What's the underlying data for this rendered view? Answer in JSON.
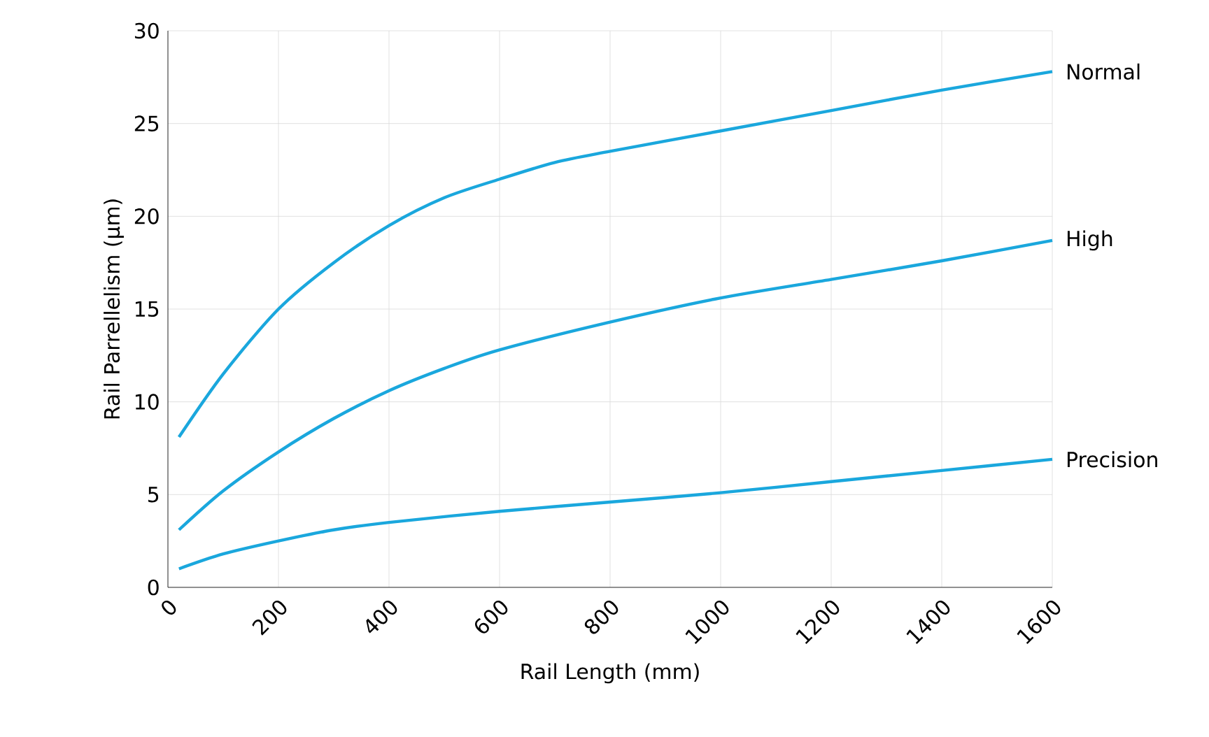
{
  "chart_data": {
    "type": "line",
    "xlabel": "Rail Length (mm)",
    "ylabel": "Rail Parrellelism (μm)",
    "xlim": [
      0,
      1600
    ],
    "ylim": [
      0,
      30
    ],
    "xticks": [
      0,
      200,
      400,
      600,
      800,
      1000,
      1200,
      1400,
      1600
    ],
    "yticks": [
      0,
      5,
      10,
      15,
      20,
      25,
      30
    ],
    "grid": true,
    "marker": "none",
    "line_style": "solid",
    "series": [
      {
        "name": "Normal",
        "color": "#1aa7dd",
        "x": [
          20,
          100,
          200,
          300,
          400,
          500,
          600,
          700,
          800,
          1000,
          1200,
          1400,
          1600
        ],
        "values": [
          8.1,
          11.5,
          15,
          17.5,
          19.5,
          21,
          22,
          22.9,
          23.5,
          24.6,
          25.7,
          26.8,
          27.8
        ]
      },
      {
        "name": "High",
        "color": "#1aa7dd",
        "x": [
          20,
          100,
          200,
          300,
          400,
          500,
          600,
          800,
          1000,
          1200,
          1400,
          1600
        ],
        "values": [
          3.1,
          5.2,
          7.3,
          9.1,
          10.6,
          11.8,
          12.8,
          14.3,
          15.6,
          16.6,
          17.6,
          18.7
        ]
      },
      {
        "name": "Precision",
        "color": "#1aa7dd",
        "x": [
          20,
          100,
          200,
          300,
          400,
          600,
          800,
          1000,
          1200,
          1400,
          1600
        ],
        "values": [
          1.0,
          1.8,
          2.5,
          3.1,
          3.5,
          4.1,
          4.6,
          5.1,
          5.7,
          6.3,
          6.9
        ]
      }
    ]
  }
}
